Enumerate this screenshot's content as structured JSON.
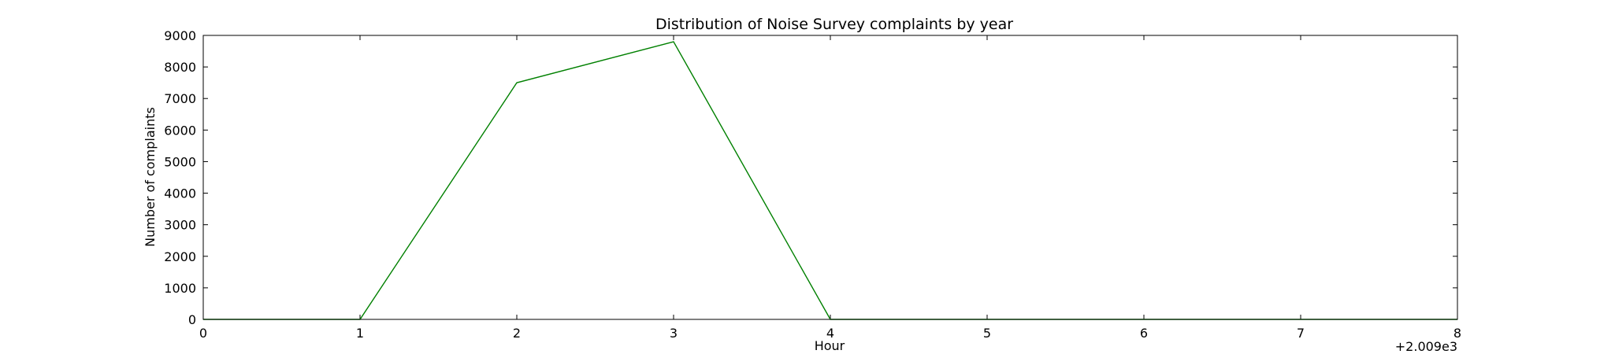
{
  "chart_data": {
    "type": "line",
    "title": "Distribution of  Noise Survey complaints by year",
    "xlabel": "Hour",
    "ylabel": "Number of complaints",
    "x_offset_label": "+2.009e3",
    "xlim": [
      0,
      8
    ],
    "ylim": [
      0,
      9000
    ],
    "xticks": [
      0,
      1,
      2,
      3,
      4,
      5,
      6,
      7,
      8
    ],
    "yticks": [
      0,
      1000,
      2000,
      3000,
      4000,
      5000,
      6000,
      7000,
      8000,
      9000
    ],
    "grid": false,
    "series": [
      {
        "color": "#008000",
        "x": [
          0,
          1,
          2,
          3,
          4,
          5,
          6,
          7,
          8
        ],
        "y": [
          0,
          0,
          7500,
          8800,
          0,
          0,
          0,
          0,
          0
        ]
      }
    ]
  }
}
